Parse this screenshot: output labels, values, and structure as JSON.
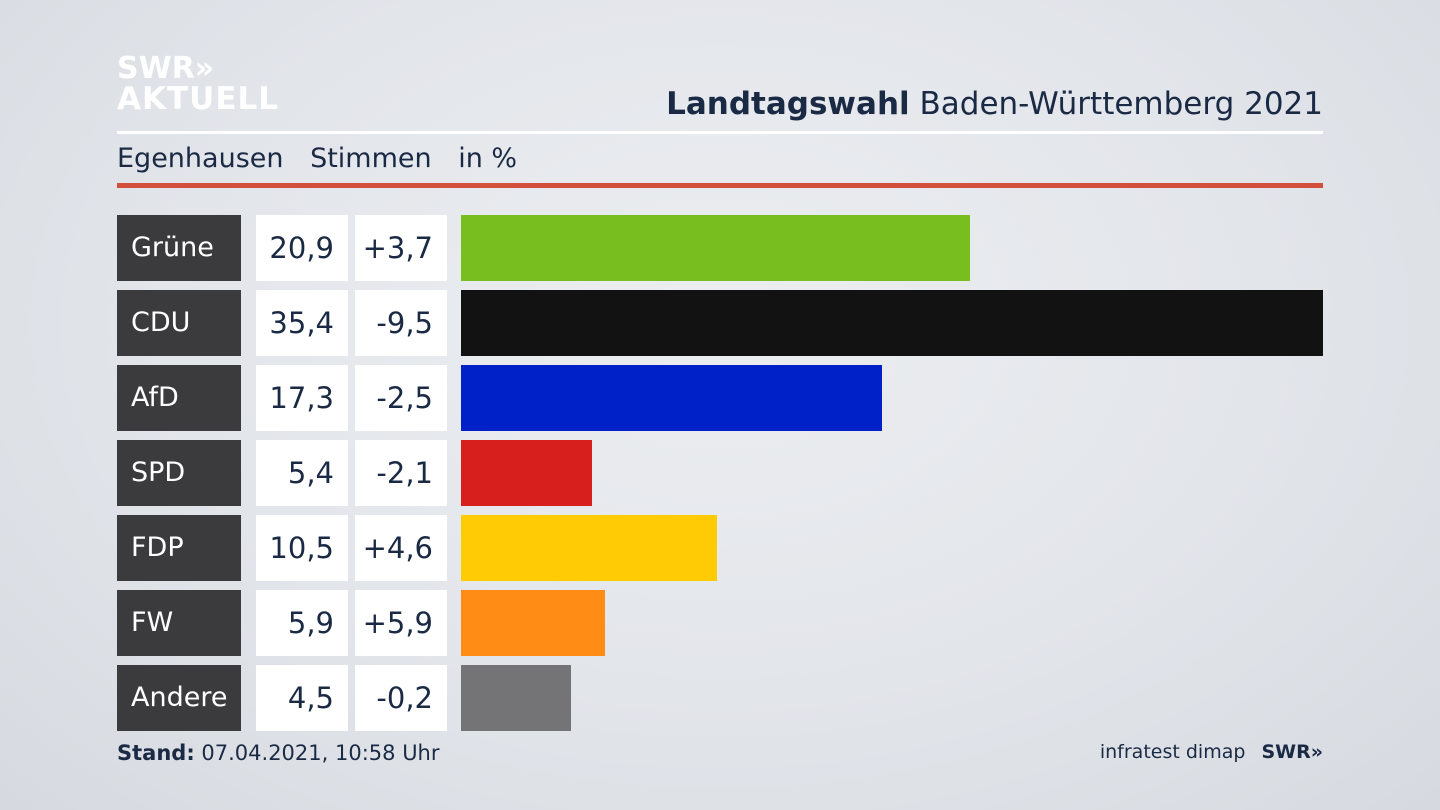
{
  "logo": {
    "line1": "SWR»",
    "line2": "AKTUELL"
  },
  "header": {
    "title_bold": "Landtagswahl",
    "title_rest": "Baden-Württemberg 2021"
  },
  "subheader": {
    "location": "Egenhausen",
    "measure": "Stimmen",
    "unit": "in %"
  },
  "chart_data": {
    "type": "bar",
    "orientation": "horizontal",
    "categories": [
      "Grüne",
      "CDU",
      "AfD",
      "SPD",
      "FDP",
      "FW",
      "Andere"
    ],
    "values": [
      20.9,
      35.4,
      17.3,
      5.4,
      10.5,
      5.9,
      4.5
    ],
    "value_labels": [
      "20,9",
      "35,4",
      "17,3",
      "5,4",
      "10,5",
      "5,9",
      "4,5"
    ],
    "diff_labels": [
      "+3,7",
      "-9,5",
      "-2,5",
      "-2,1",
      "+4,6",
      "+5,9",
      "-0,2"
    ],
    "diffs": [
      3.7,
      -9.5,
      -2.5,
      -2.1,
      4.6,
      5.9,
      -0.2
    ],
    "colors": [
      "#78be1e",
      "#121212",
      "#0021c8",
      "#d7201e",
      "#ffcb05",
      "#ff8c14",
      "#747476"
    ],
    "xlim": [
      0,
      35.4
    ],
    "grid": false,
    "legend": "none"
  },
  "footer": {
    "stand_label": "Stand:",
    "stand_value": "07.04.2021, 10:58 Uhr",
    "source": "infratest dimap",
    "brand": "SWR»"
  }
}
